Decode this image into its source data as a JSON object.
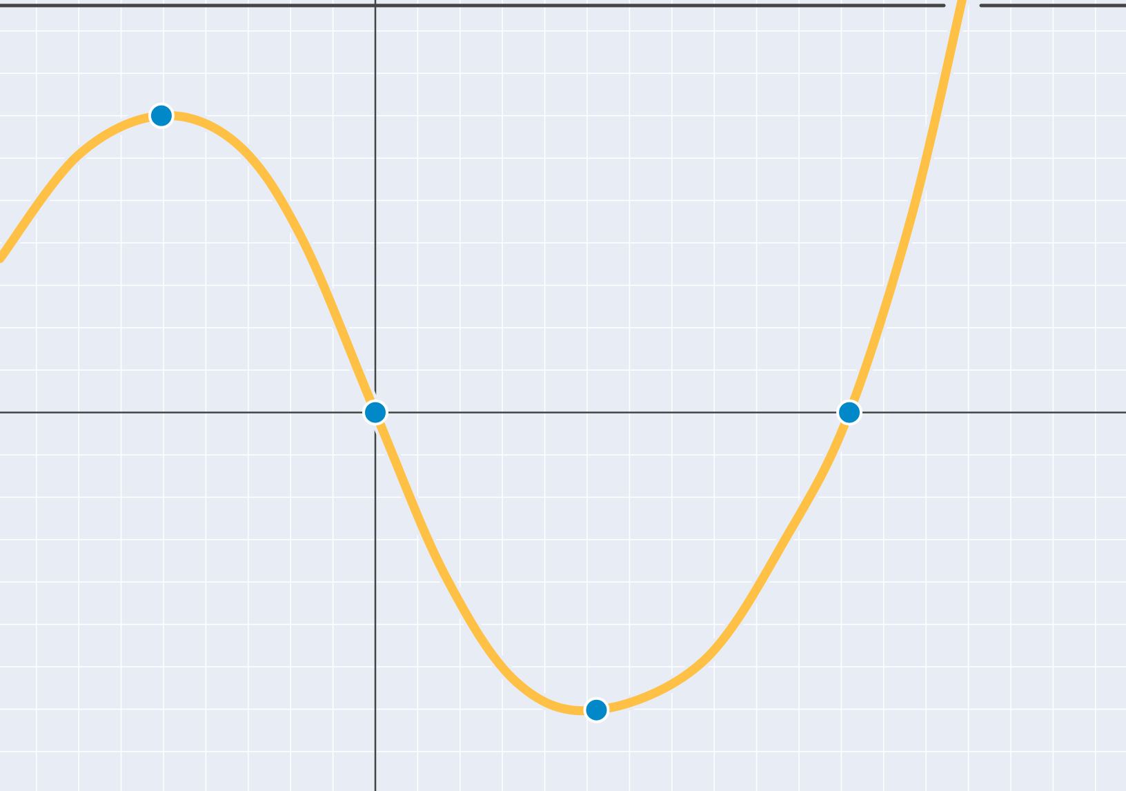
{
  "chart_data": {
    "type": "line",
    "xlim": [
      -8.86,
      17.72
    ],
    "ylim": [
      -8.93,
      9.73
    ],
    "xticks": [
      -8,
      -7,
      -6,
      -5,
      -4,
      -3,
      -2,
      -1,
      0,
      1,
      2,
      3,
      4,
      5,
      6,
      7,
      8,
      9,
      10,
      11,
      12,
      13,
      14,
      15,
      16,
      17
    ],
    "yticks": [
      -8,
      -7,
      -6,
      -5,
      -4,
      -3,
      -2,
      -1,
      0,
      1,
      2,
      3,
      4,
      5,
      6,
      7,
      8,
      9
    ],
    "grid": true,
    "background": "#e8edf5",
    "series": [
      {
        "color": "#ffc145",
        "x": [
          -8.86,
          -7.0,
          -5.05,
          -3.27,
          -1.75,
          0,
          1.64,
          3.34,
          5.22,
          7.75,
          9.78,
          11.19,
          12.66,
          13.85
        ],
        "values": [
          3.63,
          6.08,
          7.0,
          6.34,
          4.14,
          0,
          -3.83,
          -6.37,
          -7.02,
          -5.86,
          -2.81,
          0,
          4.64,
          9.73
        ]
      }
    ],
    "points": {
      "type": "scatter",
      "color": "#0088c9",
      "x": [
        -5.05,
        0,
        5.22,
        11.19
      ],
      "values": [
        7.0,
        0,
        -7.02,
        0
      ]
    }
  }
}
